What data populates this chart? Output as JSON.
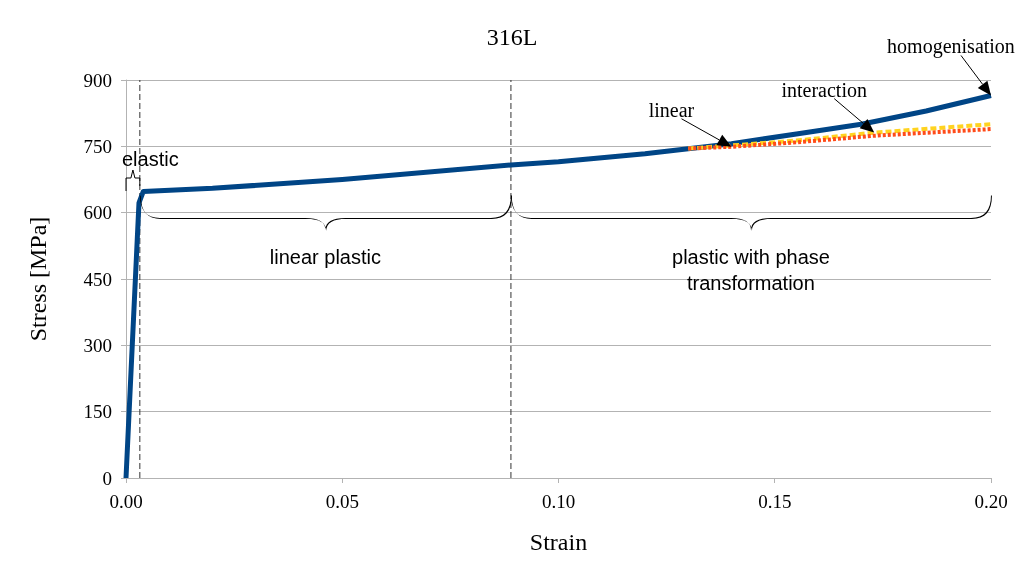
{
  "chart_data": {
    "type": "line",
    "title": "316L",
    "xlabel": "Strain",
    "ylabel": "Stress [MPa]",
    "xlim": [
      0,
      0.2
    ],
    "xticks": [
      {
        "value": 0,
        "label": "0.00"
      },
      {
        "value": 0.05,
        "label": "0.05"
      },
      {
        "value": 0.1,
        "label": "0.10"
      },
      {
        "value": 0.15,
        "label": "0.15"
      },
      {
        "value": 0.2,
        "label": "0.20"
      }
    ],
    "ylim": [
      0,
      900
    ],
    "yticks": [
      0,
      150,
      300,
      450,
      600,
      750,
      900
    ],
    "grid": "y",
    "marker": "none",
    "legend": false,
    "series": [
      {
        "name": "linear",
        "color": "#ff4c1a",
        "line_style": "dotted",
        "x": [
          0.13,
          0.14,
          0.155,
          0.173,
          0.2
        ],
        "values": [
          745,
          749,
          759,
          774,
          789
        ]
      },
      {
        "name": "interaction",
        "color": "#ffd320",
        "line_style": "dashed",
        "x": [
          0.13,
          0.14,
          0.155,
          0.173,
          0.2
        ],
        "values": [
          745,
          752,
          763,
          781,
          800
        ]
      },
      {
        "name": "homogenisation",
        "color": "#004586",
        "line_style": "solid",
        "x": [
          0,
          0.003,
          0.004,
          0.02,
          0.05,
          0.089,
          0.1,
          0.12,
          0.14,
          0.155,
          0.17,
          0.185,
          0.2
        ],
        "values": [
          0,
          622,
          648,
          655,
          675,
          708,
          715,
          733,
          756,
          778,
          800,
          830,
          865
        ]
      }
    ],
    "ref_lines": [
      {
        "axis": "x",
        "value": 0.0032,
        "line_style": "dashed"
      },
      {
        "axis": "x",
        "value": 0.089,
        "line_style": "dashed"
      }
    ],
    "annotations": [
      "elastic",
      "linear plastic",
      "plastic with phase transformation"
    ]
  }
}
